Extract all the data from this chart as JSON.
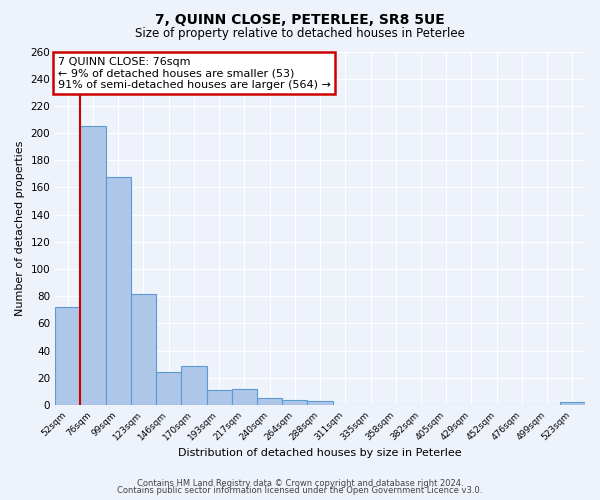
{
  "title": "7, QUINN CLOSE, PETERLEE, SR8 5UE",
  "subtitle": "Size of property relative to detached houses in Peterlee",
  "xlabel": "Distribution of detached houses by size in Peterlee",
  "ylabel": "Number of detached properties",
  "footer_lines": [
    "Contains HM Land Registry data © Crown copyright and database right 2024.",
    "Contains public sector information licensed under the Open Government Licence v3.0."
  ],
  "bin_labels": [
    "52sqm",
    "76sqm",
    "99sqm",
    "123sqm",
    "146sqm",
    "170sqm",
    "193sqm",
    "217sqm",
    "240sqm",
    "264sqm",
    "288sqm",
    "311sqm",
    "335sqm",
    "358sqm",
    "382sqm",
    "405sqm",
    "429sqm",
    "452sqm",
    "476sqm",
    "499sqm",
    "523sqm"
  ],
  "bar_values": [
    72,
    205,
    168,
    82,
    24,
    29,
    11,
    12,
    5,
    4,
    3,
    0,
    0,
    0,
    0,
    0,
    0,
    0,
    0,
    0,
    2
  ],
  "bar_color": "#aec6e8",
  "bar_edge_color": "#5b9bd5",
  "highlight_bar_index": 1,
  "highlight_color": "#cc0000",
  "annotation_box": {
    "title": "7 QUINN CLOSE: 76sqm",
    "line1": "← 9% of detached houses are smaller (53)",
    "line2": "91% of semi-detached houses are larger (564) →",
    "box_color": "#ffffff",
    "border_color": "#cc0000"
  },
  "ylim": [
    0,
    260
  ],
  "yticks": [
    0,
    20,
    40,
    60,
    80,
    100,
    120,
    140,
    160,
    180,
    200,
    220,
    240,
    260
  ],
  "background_color": "#eef2fa",
  "grid_color": "#ffffff"
}
